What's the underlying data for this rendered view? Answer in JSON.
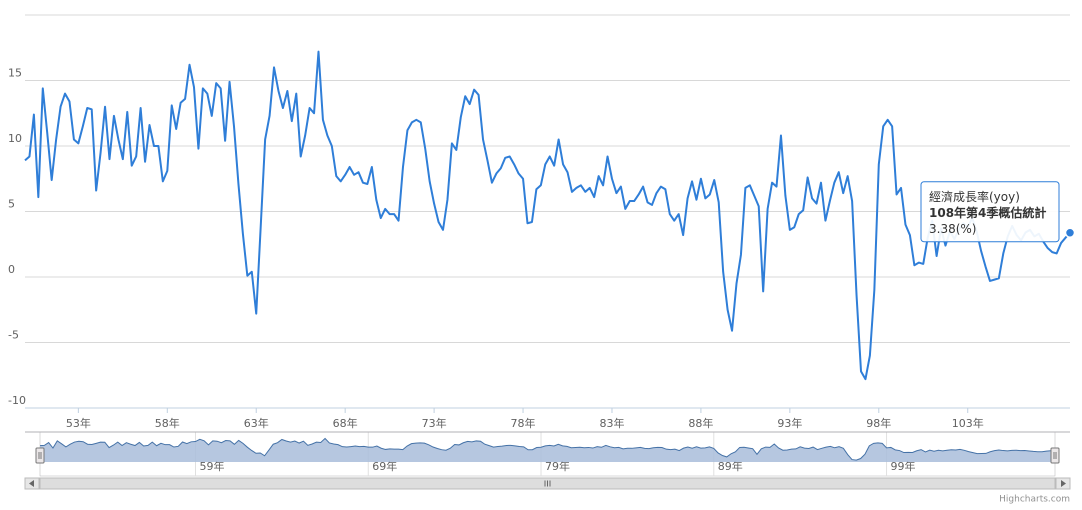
{
  "chart_data": {
    "type": "line",
    "series": [
      {
        "name": "經濟成長率(yoy)",
        "color": "#2f7ed8",
        "values": [
          8.9,
          9.2,
          12.4,
          6.1,
          14.4,
          11,
          7.4,
          10.5,
          13,
          14,
          13.4,
          10.5,
          10.2,
          11.5,
          12.9,
          12.8,
          6.6,
          9.5,
          13,
          9,
          12.3,
          10.5,
          9,
          12.6,
          8.5,
          9.2,
          12.9,
          8.8,
          11.6,
          10,
          10,
          7.3,
          8.1,
          13.1,
          11.3,
          13.3,
          13.6,
          16.2,
          14.5,
          9.8,
          14.4,
          14,
          12.3,
          14.8,
          14.4,
          10.4,
          14.9,
          11.5,
          7.1,
          3.3,
          0.1,
          0.4,
          -2.8,
          3.8,
          10.5,
          12.3,
          16,
          14.2,
          12.9,
          14.2,
          11.9,
          14,
          9.2,
          10.8,
          12.9,
          12.5,
          17.2,
          12,
          10.8,
          10,
          7.7,
          7.3,
          7.8,
          8.4,
          7.8,
          8,
          7.2,
          7.1,
          8.4,
          5.9,
          4.5,
          5.2,
          4.8,
          4.8,
          4.3,
          8.4,
          11.2,
          11.8,
          12,
          11.8,
          9.8,
          7.3,
          5.6,
          4.2,
          3.6,
          5.9,
          10.2,
          9.7,
          12.2,
          13.8,
          13.2,
          14.3,
          13.9,
          10.5,
          8.9,
          7.2,
          7.9,
          8.3,
          9.1,
          9.2,
          8.6,
          7.9,
          7.5,
          4.1,
          4.2,
          6.7,
          7,
          8.6,
          9.2,
          8.5,
          10.5,
          8.6,
          8,
          6.5,
          6.8,
          7,
          6.5,
          6.8,
          6.1,
          7.7,
          7,
          9.2,
          7.5,
          6.4,
          6.9,
          5.2,
          5.8,
          5.8,
          6.3,
          6.9,
          5.7,
          5.5,
          6.4,
          6.9,
          6.7,
          4.8,
          4.3,
          4.8,
          3.2,
          6,
          7.3,
          5.9,
          7.5,
          6,
          6.3,
          7.4,
          5.7,
          0.4,
          -2.5,
          -4.1,
          -0.5,
          1.7,
          6.8,
          7,
          6.2,
          5.4,
          -1.1,
          5.2,
          7.2,
          6.9,
          10.8,
          6.2,
          3.6,
          3.8,
          4.8,
          5.1,
          7.6,
          6,
          5.6,
          7.2,
          4.3,
          5.8,
          7.2,
          8,
          6.4,
          7.7,
          5.8,
          -1.4,
          -7.2,
          -7.8,
          -6,
          -1,
          8.6,
          11.5,
          12,
          11.5,
          6.3,
          6.8,
          4,
          3.2,
          0.9,
          1.1,
          1,
          3,
          4.3,
          1.6,
          3.7,
          2.4,
          3.5,
          2.9,
          3.6,
          4.1,
          3.8,
          4.5,
          3.5,
          2,
          0.8,
          -0.3,
          -0.2,
          -0.1,
          1.8,
          3.1,
          3.9,
          3.2,
          2.8,
          3.4,
          3.6,
          3.1,
          3.3,
          2.7,
          2.2,
          1.9,
          1.8,
          2.6,
          3,
          3.38
        ]
      }
    ],
    "x": [
      50,
      50.25,
      50.5,
      50.75,
      51,
      51.25,
      51.5,
      51.75,
      52,
      52.25,
      52.5,
      52.75,
      53,
      53.25,
      53.5,
      53.75,
      54,
      54.25,
      54.5,
      54.75,
      55,
      55.25,
      55.5,
      55.75,
      56,
      56.25,
      56.5,
      56.75,
      57,
      57.25,
      57.5,
      57.75,
      58,
      58.25,
      58.5,
      58.75,
      59,
      59.25,
      59.5,
      59.75,
      60,
      60.25,
      60.5,
      60.75,
      61,
      61.25,
      61.5,
      61.75,
      62,
      62.25,
      62.5,
      62.75,
      63,
      63.25,
      63.5,
      63.75,
      64,
      64.25,
      64.5,
      64.75,
      65,
      65.25,
      65.5,
      65.75,
      66,
      66.25,
      66.5,
      66.75,
      67,
      67.25,
      67.5,
      67.75,
      68,
      68.25,
      68.5,
      68.75,
      69,
      69.25,
      69.5,
      69.75,
      70,
      70.25,
      70.5,
      70.75,
      71,
      71.25,
      71.5,
      71.75,
      72,
      72.25,
      72.5,
      72.75,
      73,
      73.25,
      73.5,
      73.75,
      74,
      74.25,
      74.5,
      74.75,
      75,
      75.25,
      75.5,
      75.75,
      76,
      76.25,
      76.5,
      76.75,
      77,
      77.25,
      77.5,
      77.75,
      78,
      78.25,
      78.5,
      78.75,
      79,
      79.25,
      79.5,
      79.75,
      80,
      80.25,
      80.5,
      80.75,
      81,
      81.25,
      81.5,
      81.75,
      82,
      82.25,
      82.5,
      82.75,
      83,
      83.25,
      83.5,
      83.75,
      84,
      84.25,
      84.5,
      84.75,
      85,
      85.25,
      85.5,
      85.75,
      86,
      86.25,
      86.5,
      86.75,
      87,
      87.25,
      87.5,
      87.75,
      88,
      88.25,
      88.5,
      88.75,
      89,
      89.25,
      89.5,
      89.75,
      90,
      90.25,
      90.5,
      90.75,
      91,
      91.25,
      91.5,
      91.75,
      92,
      92.25,
      92.5,
      92.75,
      93,
      93.25,
      93.5,
      93.75,
      94,
      94.25,
      94.5,
      94.75,
      95,
      95.25,
      95.5,
      95.75,
      96,
      96.25,
      96.5,
      96.75,
      97,
      97.25,
      97.5,
      97.75,
      98,
      98.25,
      98.5,
      98.75,
      99,
      99.25,
      99.5,
      99.75,
      100,
      100.25,
      100.5,
      100.75,
      101,
      101.25,
      101.5,
      101.75,
      102,
      102.25,
      102.5,
      102.75,
      103,
      103.25,
      103.5,
      103.75,
      104,
      104.25,
      104.5,
      104.75,
      105,
      105.25,
      105.5,
      105.75,
      106,
      106.25,
      106.5,
      106.75,
      107,
      107.25,
      107.5,
      107.75,
      108,
      108.25,
      108.5,
      108.75
    ],
    "xlim": [
      50,
      108.75
    ],
    "ylim": [
      -10,
      20
    ],
    "yticks": [
      -10,
      -5,
      0,
      5,
      10,
      15
    ],
    "xticks": [
      {
        "value": 53,
        "label": "53年"
      },
      {
        "value": 58,
        "label": "58年"
      },
      {
        "value": 63,
        "label": "63年"
      },
      {
        "value": 68,
        "label": "68年"
      },
      {
        "value": 73,
        "label": "73年"
      },
      {
        "value": 78,
        "label": "78年"
      },
      {
        "value": 83,
        "label": "83年"
      },
      {
        "value": 88,
        "label": "88年"
      },
      {
        "value": 93,
        "label": "93年"
      },
      {
        "value": 98,
        "label": "98年"
      },
      {
        "value": 103,
        "label": "103年"
      }
    ],
    "grid": true,
    "navigator": {
      "xticks": [
        {
          "value": 59,
          "label": "59年"
        },
        {
          "value": 69,
          "label": "69年"
        },
        {
          "value": 79,
          "label": "79年"
        },
        {
          "value": 89,
          "label": "89年"
        },
        {
          "value": 99,
          "label": "99年"
        }
      ]
    },
    "tooltip": {
      "header": "108年第4季概估統計",
      "label": "3.38(%)"
    },
    "credits": "Highcharts.com"
  }
}
